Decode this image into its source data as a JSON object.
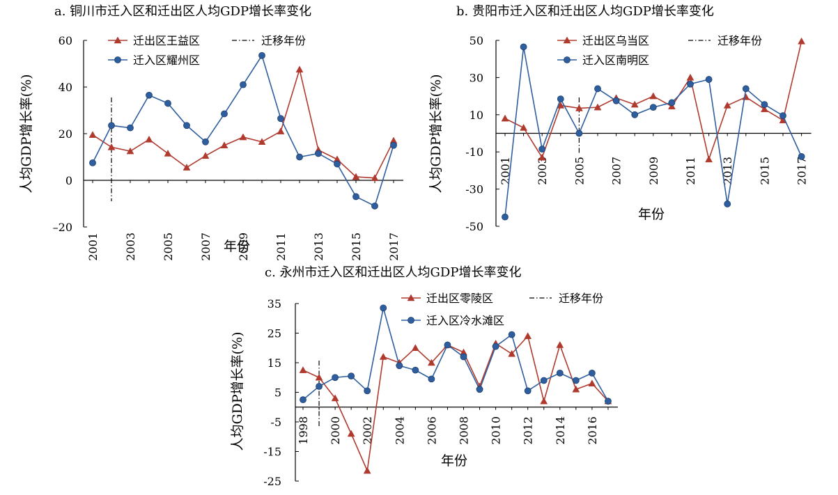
{
  "figure": {
    "colors": {
      "out_series": "#b03a2e",
      "in_series": "#2e5e9e",
      "axis": "#000000"
    }
  },
  "chart_data": [
    {
      "type": "line",
      "title": "a. 铜川市迁入区和迁出区人均GDP增长率变化",
      "xlabel": "年份",
      "ylabel": "人均GDP增长率(%)",
      "x": [
        2001,
        2002,
        2003,
        2004,
        2005,
        2006,
        2007,
        2008,
        2009,
        2010,
        2011,
        2012,
        2013,
        2014,
        2015,
        2016,
        2017
      ],
      "x_ticks": [
        "2001",
        "2003",
        "2005",
        "2007",
        "2009",
        "2011",
        "2013",
        "2015",
        "2017"
      ],
      "ylim": [
        -20,
        60
      ],
      "y_ticks": [
        "60",
        "40",
        "20",
        "0",
        "–20"
      ],
      "series": [
        {
          "name": "迁出区王益区",
          "marker": "triangle",
          "values": [
            19.5,
            14.2,
            12.5,
            17.5,
            11.5,
            5.5,
            10.5,
            15,
            18.5,
            16.5,
            21,
            47.5,
            13,
            9,
            1.5,
            1,
            17
          ]
        },
        {
          "name": "迁入区耀州区",
          "marker": "circle",
          "values": [
            7.5,
            23.5,
            22.5,
            36.5,
            33,
            23.5,
            16.5,
            28.5,
            41,
            53.5,
            26.5,
            10,
            11.5,
            7,
            -7,
            -11,
            15
          ]
        }
      ],
      "migration_year": 2002,
      "migration_label": "迁移年份",
      "legend": "top-left"
    },
    {
      "type": "line",
      "title": "b. 贵阳市迁入区和迁出区人均GDP增长率变化",
      "xlabel": "年份",
      "ylabel": "人均GDP增长率(%)",
      "x": [
        2001,
        2002,
        2003,
        2004,
        2005,
        2006,
        2007,
        2008,
        2009,
        2010,
        2011,
        2012,
        2013,
        2014,
        2015,
        2016,
        2017
      ],
      "x_ticks": [
        "2001",
        "2003",
        "2005",
        "2007",
        "2009",
        "2011",
        "2013",
        "2015",
        "2017"
      ],
      "ylim": [
        -50,
        50
      ],
      "y_ticks": [
        "50",
        "30",
        "10",
        "-10",
        "-30",
        "-50"
      ],
      "series": [
        {
          "name": "迁出区乌当区",
          "marker": "triangle",
          "values": [
            8,
            3,
            -13,
            15,
            13.5,
            14,
            19,
            15.5,
            20,
            14.5,
            30,
            -14,
            15,
            19.5,
            13,
            7,
            49.5
          ]
        },
        {
          "name": "迁入区南明区",
          "marker": "circle",
          "values": [
            -45,
            46.5,
            -8.5,
            18.5,
            0,
            24,
            17.5,
            10,
            14,
            16.5,
            26.5,
            29,
            -38,
            24,
            15.5,
            9.5,
            -12.5
          ]
        }
      ],
      "migration_year": 2005,
      "migration_label": "迁移年份",
      "legend": "top-left"
    },
    {
      "type": "line",
      "title": "c. 永州市迁入区和迁出区人均GDP增长率变化",
      "xlabel": "年份",
      "ylabel": "人均GDP增长率(%)",
      "x": [
        1998,
        1999,
        2000,
        2001,
        2002,
        2003,
        2004,
        2005,
        2006,
        2007,
        2008,
        2009,
        2010,
        2011,
        2012,
        2013,
        2014,
        2015,
        2016,
        2017
      ],
      "x_ticks": [
        "1998",
        "2000",
        "2002",
        "2004",
        "2006",
        "2008",
        "2010",
        "2012",
        "2014",
        "2016"
      ],
      "ylim": [
        -25,
        35
      ],
      "y_ticks": [
        "35",
        "25",
        "15",
        "5",
        "-5",
        "-15",
        "-25"
      ],
      "series": [
        {
          "name": "迁出区零陵区",
          "marker": "triangle",
          "values": [
            12.5,
            10,
            3,
            -9,
            -21.5,
            17,
            15,
            20,
            15,
            21,
            18.5,
            7,
            21.5,
            18,
            24,
            2,
            21,
            6,
            8,
            2
          ]
        },
        {
          "name": "迁入区冷水滩区",
          "marker": "circle",
          "values": [
            2.5,
            7,
            10,
            10.5,
            5.5,
            33.5,
            14,
            12.5,
            9.5,
            21,
            17,
            6,
            20.5,
            24.5,
            5.5,
            9,
            11.5,
            9,
            11.5,
            2
          ]
        }
      ],
      "migration_year": 1999,
      "migration_label": "迁移年份",
      "legend": "top-right"
    }
  ]
}
